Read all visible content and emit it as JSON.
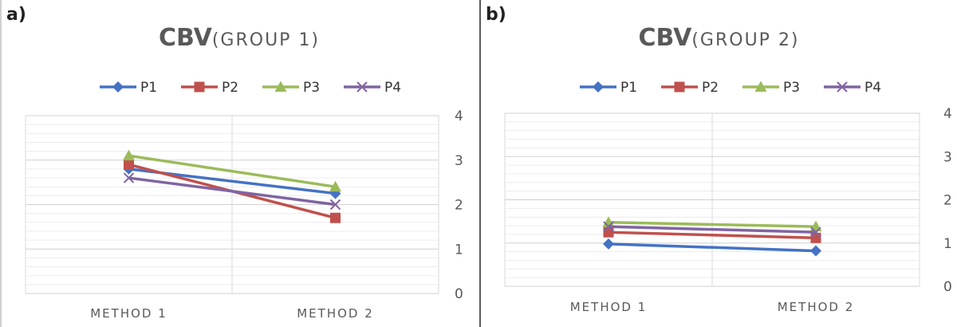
{
  "chart_data": [
    {
      "panel_label": "a)",
      "title_main": "CBV",
      "title_sub": "(GROUP 1)",
      "type": "line",
      "categories": [
        "METHOD 1",
        "METHOD 2"
      ],
      "ylim": [
        0,
        4
      ],
      "yticks": [
        "0",
        "1",
        "2",
        "3",
        "4"
      ],
      "y_axis_side": "right",
      "legend_position": "top",
      "series": [
        {
          "name": "P1",
          "values": [
            2.8,
            2.25
          ],
          "color": "#4472C4",
          "marker": "diamond"
        },
        {
          "name": "P2",
          "values": [
            2.9,
            1.7
          ],
          "color": "#C0504D",
          "marker": "square"
        },
        {
          "name": "P3",
          "values": [
            3.1,
            2.4
          ],
          "color": "#9BBB59",
          "marker": "triangle"
        },
        {
          "name": "P4",
          "values": [
            2.6,
            2.0
          ],
          "color": "#8064A2",
          "marker": "x"
        }
      ]
    },
    {
      "panel_label": "b)",
      "title_main": "CBV",
      "title_sub": "(GROUP 2)",
      "type": "line",
      "categories": [
        "METHOD 1",
        "METHOD 2"
      ],
      "ylim": [
        0,
        4
      ],
      "yticks": [
        "0",
        "1",
        "2",
        "3",
        "4"
      ],
      "y_axis_side": "right",
      "legend_position": "top",
      "series": [
        {
          "name": "P1",
          "values": [
            0.98,
            0.82
          ],
          "color": "#4472C4",
          "marker": "diamond"
        },
        {
          "name": "P2",
          "values": [
            1.25,
            1.12
          ],
          "color": "#C0504D",
          "marker": "square"
        },
        {
          "name": "P3",
          "values": [
            1.48,
            1.38
          ],
          "color": "#9BBB59",
          "marker": "triangle"
        },
        {
          "name": "P4",
          "values": [
            1.38,
            1.25
          ],
          "color": "#8064A2",
          "marker": "x"
        }
      ]
    }
  ]
}
